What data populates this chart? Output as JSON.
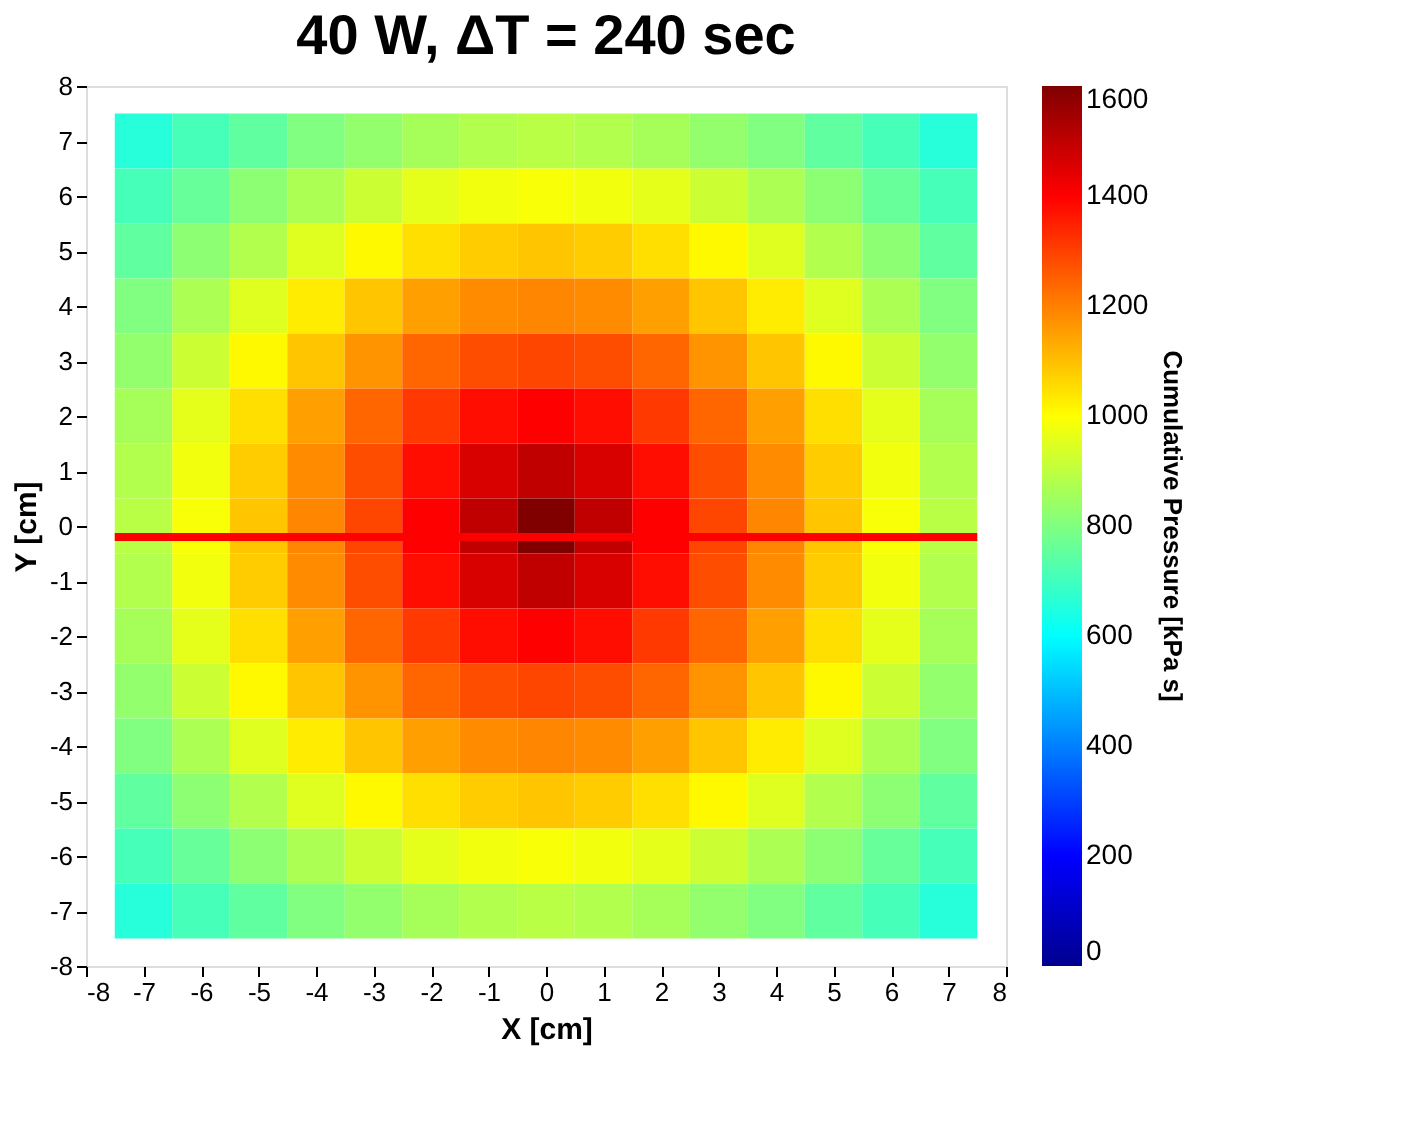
{
  "chart_data": {
    "type": "heatmap",
    "title": "40 W, ΔT = 240 sec",
    "xlabel": "X [cm]",
    "ylabel": "Y [cm]",
    "clabel": "Cumulative Pressure [kPa s]",
    "x": [
      -7,
      -6,
      -5,
      -4,
      -3,
      -2,
      -1,
      0,
      1,
      2,
      3,
      4,
      5,
      6,
      7
    ],
    "y": [
      7,
      6,
      5,
      4,
      3,
      2,
      1,
      0,
      -1,
      -2,
      -3,
      -4,
      -5,
      -6,
      -7
    ],
    "cells": [
      [
        660,
        710,
        750,
        800,
        830,
        860,
        880,
        890,
        880,
        860,
        830,
        800,
        750,
        710,
        660
      ],
      [
        710,
        760,
        820,
        870,
        920,
        960,
        980,
        990,
        980,
        960,
        920,
        870,
        820,
        760,
        710
      ],
      [
        750,
        820,
        880,
        950,
        1010,
        1050,
        1080,
        1090,
        1080,
        1050,
        1010,
        950,
        880,
        820,
        750
      ],
      [
        800,
        870,
        950,
        1030,
        1090,
        1150,
        1180,
        1190,
        1180,
        1150,
        1090,
        1030,
        950,
        870,
        800
      ],
      [
        830,
        920,
        1010,
        1090,
        1170,
        1240,
        1280,
        1290,
        1280,
        1240,
        1170,
        1090,
        1010,
        920,
        830
      ],
      [
        860,
        960,
        1050,
        1150,
        1240,
        1310,
        1380,
        1400,
        1380,
        1310,
        1240,
        1150,
        1050,
        960,
        860
      ],
      [
        880,
        980,
        1080,
        1180,
        1280,
        1380,
        1460,
        1500,
        1460,
        1380,
        1280,
        1180,
        1080,
        980,
        880
      ],
      [
        890,
        990,
        1090,
        1190,
        1290,
        1400,
        1500,
        1600,
        1500,
        1400,
        1290,
        1190,
        1090,
        990,
        890
      ],
      [
        880,
        980,
        1080,
        1180,
        1280,
        1380,
        1460,
        1500,
        1460,
        1380,
        1280,
        1180,
        1080,
        980,
        880
      ],
      [
        860,
        960,
        1050,
        1150,
        1240,
        1310,
        1380,
        1400,
        1380,
        1310,
        1240,
        1150,
        1050,
        960,
        860
      ],
      [
        830,
        920,
        1010,
        1090,
        1170,
        1240,
        1280,
        1290,
        1280,
        1240,
        1170,
        1090,
        1010,
        920,
        830
      ],
      [
        800,
        870,
        950,
        1030,
        1090,
        1150,
        1180,
        1190,
        1180,
        1150,
        1090,
        1030,
        950,
        870,
        800
      ],
      [
        750,
        820,
        880,
        950,
        1010,
        1050,
        1080,
        1090,
        1080,
        1050,
        1010,
        950,
        880,
        820,
        750
      ],
      [
        710,
        760,
        820,
        870,
        920,
        960,
        980,
        990,
        980,
        960,
        920,
        870,
        820,
        760,
        710
      ],
      [
        660,
        710,
        750,
        800,
        830,
        860,
        880,
        890,
        880,
        860,
        830,
        800,
        750,
        710,
        660
      ]
    ],
    "colors": [
      "#00008f",
      "#0000ff",
      "#00ffff",
      "#ffff00",
      "#ff0000",
      "#800000"
    ],
    "clim": [
      0,
      1600
    ],
    "cticks": [
      0,
      200,
      400,
      600,
      800,
      1000,
      1200,
      1400,
      1600
    ],
    "xlim": [
      -8,
      8
    ],
    "xticks": [
      -8,
      -7,
      -6,
      -5,
      -4,
      -3,
      -2,
      -1,
      0,
      1,
      2,
      3,
      4,
      5,
      6,
      7,
      8
    ],
    "ylim": [
      -8,
      8
    ],
    "yticks": [
      -8,
      -7,
      -6,
      -5,
      -4,
      -3,
      -2,
      -1,
      0,
      1,
      2,
      3,
      4,
      5,
      6,
      7,
      8
    ],
    "ref_lines": [
      {
        "axis": "y",
        "value": -0.2,
        "color": "#ff0000"
      }
    ],
    "grid": false
  }
}
